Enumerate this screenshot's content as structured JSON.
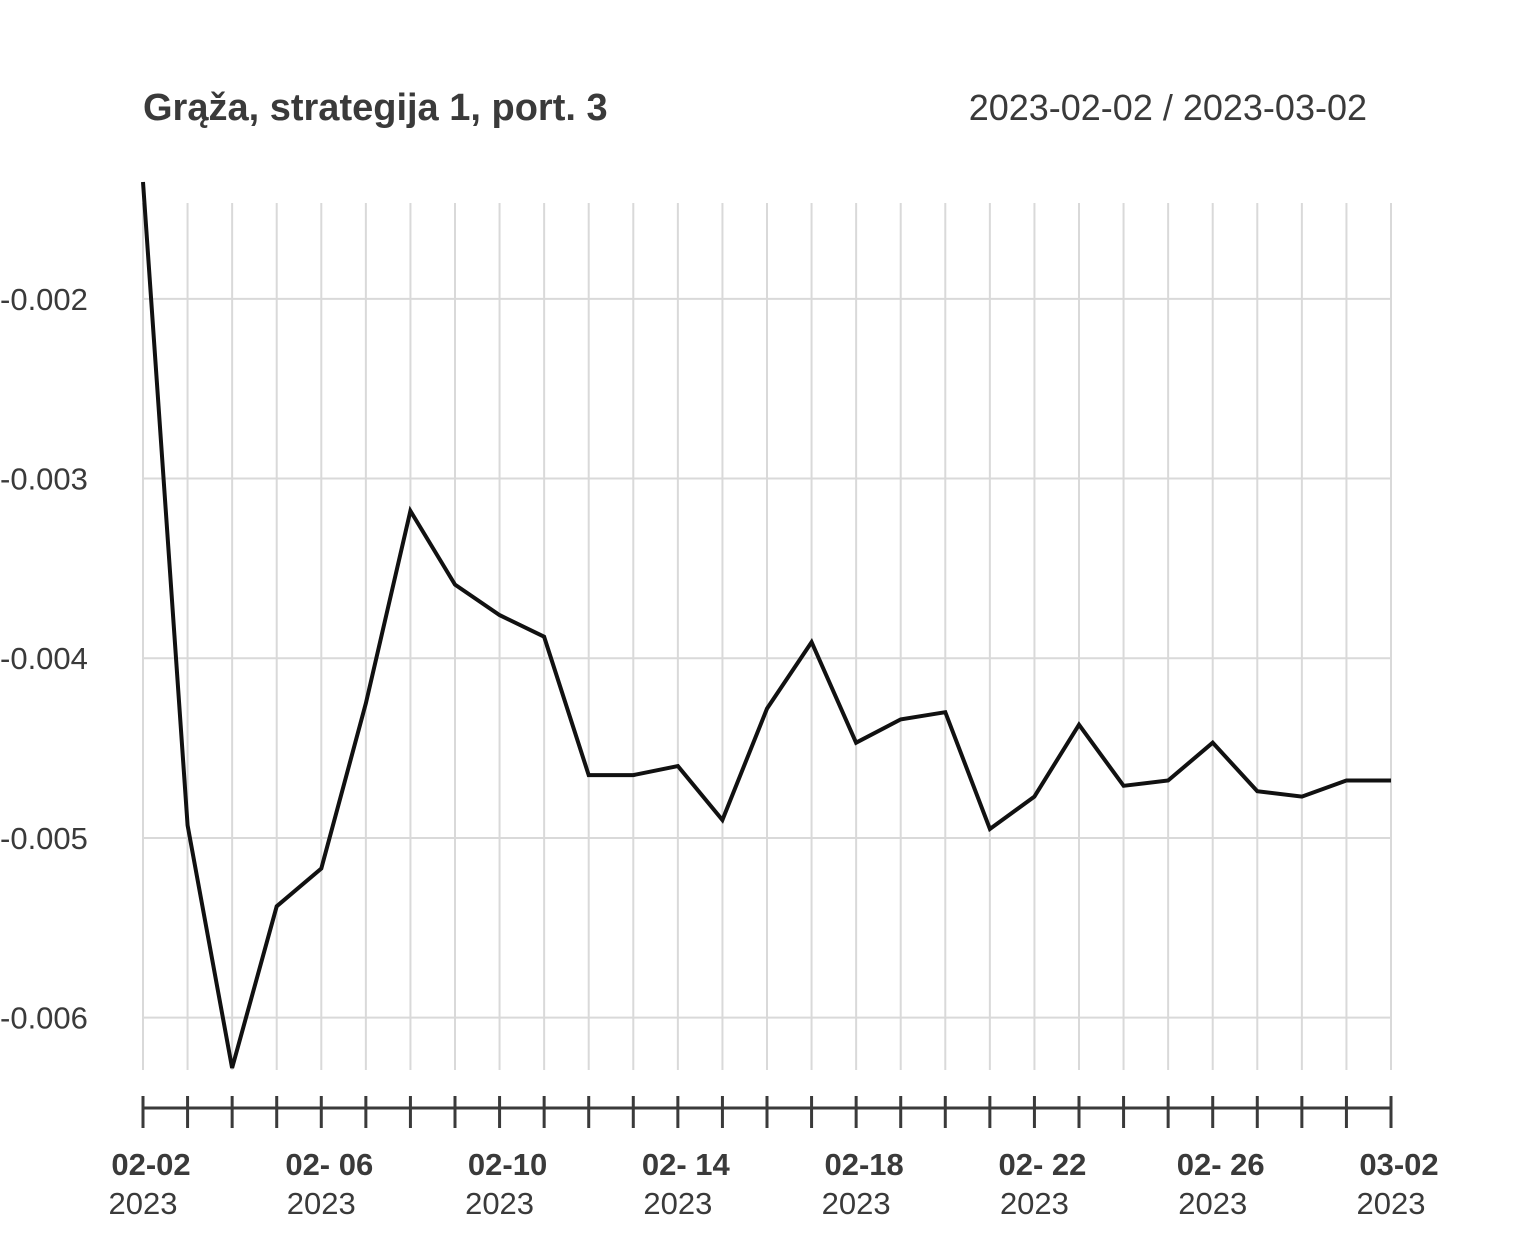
{
  "chart_data": {
    "type": "line",
    "title": "Grąža, strategija 1, port. 3",
    "date_range": "2023-02-02 / 2023-03-02",
    "xlabel": "",
    "ylabel": "",
    "ylim": [
      -0.00628,
      -0.00135
    ],
    "yticks": [
      {
        "value": -0.002,
        "label": "-0.002"
      },
      {
        "value": -0.003,
        "label": "-0.003"
      },
      {
        "value": -0.004,
        "label": "-0.004"
      },
      {
        "value": -0.005,
        "label": "-0.005"
      },
      {
        "value": -0.006,
        "label": "-0.006"
      }
    ],
    "xticks": [
      {
        "index": 0,
        "label": "02-02",
        "year": "2023"
      },
      {
        "index": 4,
        "label": "02- 06",
        "year": "2023"
      },
      {
        "index": 8,
        "label": "02-10",
        "year": "2023"
      },
      {
        "index": 12,
        "label": "02- 14",
        "year": "2023"
      },
      {
        "index": 16,
        "label": "02-18",
        "year": "2023"
      },
      {
        "index": 20,
        "label": "02- 22",
        "year": "2023"
      },
      {
        "index": 24,
        "label": "02- 26",
        "year": "2023"
      },
      {
        "index": 28,
        "label": "03-02",
        "year": "2023"
      }
    ],
    "x": [
      "2023-02-02",
      "2023-02-03",
      "2023-02-04",
      "2023-02-05",
      "2023-02-06",
      "2023-02-07",
      "2023-02-08",
      "2023-02-09",
      "2023-02-10",
      "2023-02-11",
      "2023-02-12",
      "2023-02-13",
      "2023-02-14",
      "2023-02-15",
      "2023-02-16",
      "2023-02-17",
      "2023-02-18",
      "2023-02-19",
      "2023-02-20",
      "2023-02-21",
      "2023-02-22",
      "2023-02-23",
      "2023-02-24",
      "2023-02-25",
      "2023-02-26",
      "2023-02-27",
      "2023-02-28",
      "2023-03-01",
      "2023-03-02"
    ],
    "series": [
      {
        "color": "#111111",
        "values": [
          -0.00135,
          -0.00493,
          -0.00628,
          -0.00538,
          -0.00517,
          -0.00425,
          -0.00318,
          -0.00359,
          -0.00376,
          -0.00388,
          -0.00465,
          -0.00465,
          -0.0046,
          -0.0049,
          -0.00428,
          -0.00391,
          -0.00447,
          -0.00434,
          -0.0043,
          -0.00495,
          -0.00477,
          -0.00437,
          -0.00471,
          -0.00468,
          -0.00447,
          -0.00474,
          -0.00477,
          -0.00468,
          -0.00468
        ]
      }
    ],
    "grid": true,
    "legend": "none"
  }
}
